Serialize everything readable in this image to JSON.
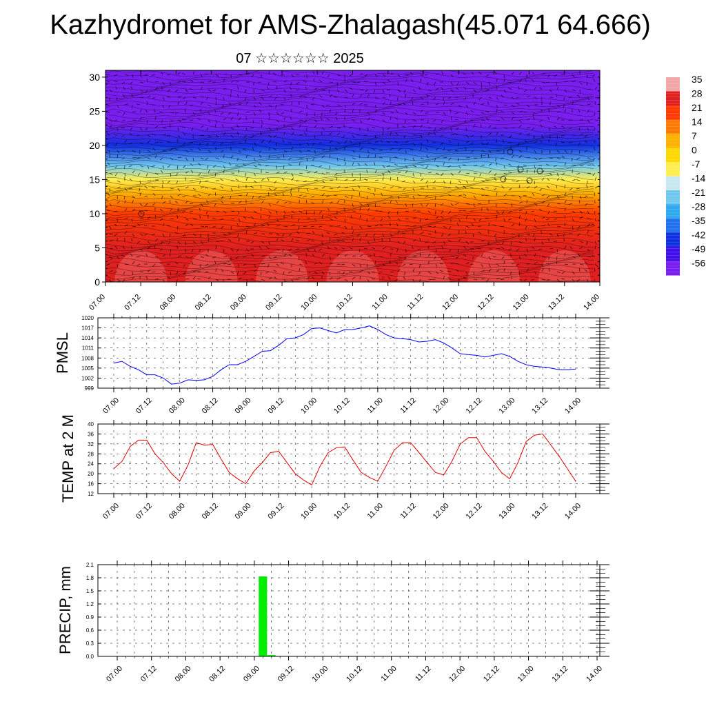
{
  "title": "Kazhydromet for AMS-Zhalagash(45.071 64.666)",
  "subtitle": "07 ☆☆☆☆☆☆ 2025",
  "time_labels": [
    "07.00",
    "07.12",
    "08.00",
    "08.12",
    "09.00",
    "09.12",
    "10.00",
    "10.12",
    "11.00",
    "11.12",
    "12.00",
    "12.12",
    "13.00",
    "13.12",
    "14.00"
  ],
  "chart_data": [
    {
      "type": "heatmap",
      "name": "temperature-cross-section",
      "title": "",
      "xlabel": "",
      "ylabel": "",
      "ylim": [
        0,
        31
      ],
      "yticks": [
        0,
        5,
        10,
        15,
        20,
        25,
        30
      ],
      "overlay": "wind barbs and streamlines",
      "colorbar": {
        "labels": [
          "35",
          "28",
          "21",
          "14",
          "7",
          "0",
          "-7",
          "-14",
          "-21",
          "-28",
          "-35",
          "-42",
          "-49",
          "-56"
        ],
        "colors": [
          "#f2a6a6",
          "#e02020",
          "#ff3b00",
          "#ff7a00",
          "#ffb000",
          "#ffd800",
          "#ffee50",
          "#c8e8f0",
          "#70c8f0",
          "#30a8f0",
          "#2070f0",
          "#1030e0",
          "#4010e8",
          "#7a1ef0"
        ]
      },
      "layers": [
        {
          "level": 0,
          "value": 31
        },
        {
          "level": 5,
          "value": 28
        },
        {
          "level": 10,
          "value": 20
        },
        {
          "level": 13,
          "value": 6
        },
        {
          "level": 15,
          "value": -10
        },
        {
          "level": 17,
          "value": -20
        },
        {
          "level": 20,
          "value": -40
        },
        {
          "level": 23,
          "value": -56
        },
        {
          "level": 26,
          "value": -60
        },
        {
          "level": 31,
          "value": -58
        }
      ]
    },
    {
      "type": "line",
      "name": "PMSL",
      "ylabel": "PMSL",
      "ylim": [
        999,
        1020
      ],
      "yticks": [
        999,
        1002,
        1005,
        1008,
        1011,
        1014,
        1017,
        1020
      ],
      "color": "#0000ff",
      "x_hours": [
        0,
        3,
        6,
        9,
        12,
        15,
        18,
        21,
        24,
        27,
        30,
        33,
        36,
        39,
        42,
        45,
        48,
        51,
        54,
        57,
        60,
        63,
        66,
        69,
        72,
        75,
        78,
        81,
        84,
        87,
        90,
        93,
        96,
        99,
        102,
        105,
        108,
        111,
        114,
        117,
        120,
        123,
        126,
        129,
        132,
        135,
        138,
        141,
        144,
        147,
        150,
        153,
        156,
        159,
        162,
        165,
        168
      ],
      "values": [
        1006.5,
        1007,
        1005.5,
        1004.5,
        1003,
        1003,
        1002,
        1000.2,
        1000.5,
        1001.5,
        1001.3,
        1001.5,
        1002.5,
        1004.5,
        1006,
        1006,
        1007,
        1008.5,
        1010,
        1010.2,
        1011.8,
        1013.8,
        1014,
        1015,
        1016.8,
        1017,
        1016.2,
        1015.5,
        1016.5,
        1016.5,
        1017,
        1017.6,
        1016.5,
        1015,
        1014,
        1013.8,
        1013.5,
        1012.8,
        1013,
        1013.5,
        1012.5,
        1011,
        1009.3,
        1009,
        1008.8,
        1008.3,
        1008.8,
        1009.3,
        1008.5,
        1007,
        1006,
        1005.5,
        1005.3,
        1005,
        1004.5,
        1004.5,
        1004.7
      ]
    },
    {
      "type": "line",
      "name": "TEMP at 2 M",
      "ylabel": "TEMP at 2 M",
      "ylim": [
        12,
        40
      ],
      "yticks": [
        12,
        16,
        20,
        24,
        28,
        32,
        36,
        40
      ],
      "color": "#e00000",
      "x_hours": [
        0,
        3,
        6,
        9,
        12,
        15,
        18,
        21,
        24,
        27,
        30,
        33,
        36,
        39,
        42,
        45,
        48,
        51,
        54,
        57,
        60,
        63,
        66,
        69,
        72,
        75,
        78,
        81,
        84,
        87,
        90,
        93,
        96,
        99,
        102,
        105,
        108,
        111,
        114,
        117,
        120,
        123,
        126,
        129,
        132,
        135,
        138,
        141,
        144,
        147,
        150,
        153,
        156,
        159,
        162,
        165,
        168
      ],
      "values": [
        22,
        25,
        31,
        33.5,
        33.5,
        28,
        24.5,
        20,
        17,
        23.5,
        32.5,
        31.5,
        31.8,
        26,
        20.5,
        18,
        16,
        21,
        24.5,
        28.5,
        29,
        24.5,
        20,
        17.5,
        15.5,
        23,
        28.5,
        30.5,
        30.8,
        25.5,
        20.5,
        18.5,
        17,
        23,
        29.5,
        32.5,
        32.5,
        28.5,
        24.5,
        20.5,
        19.5,
        25,
        32,
        34.5,
        34.5,
        29,
        25,
        20.5,
        18,
        24.5,
        33,
        35.5,
        36,
        31.5,
        27,
        22,
        17
      ]
    },
    {
      "type": "bar",
      "name": "PRECIP, mm",
      "ylabel": "PRECIP, mm",
      "ylim": [
        0,
        2.1
      ],
      "yticks": [
        0.0,
        0.3,
        0.6,
        0.9,
        1.2,
        1.5,
        1.8,
        2.1
      ],
      "color": "#00ee00",
      "bars": [
        {
          "hour": 51,
          "value": 1.83
        },
        {
          "hour": 54,
          "value": 0.03
        }
      ]
    }
  ]
}
